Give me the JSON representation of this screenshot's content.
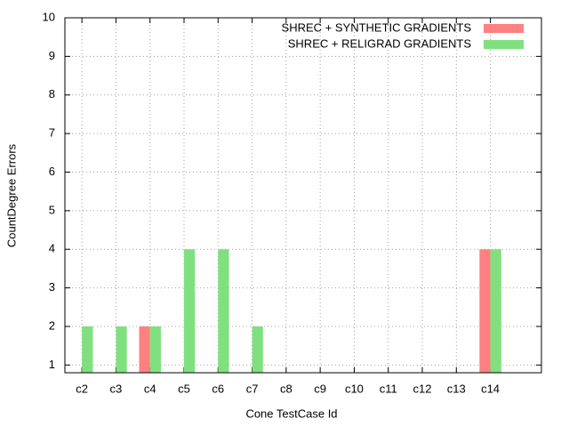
{
  "chart_data": {
    "type": "bar",
    "xlabel": "Cone TestCase Id",
    "ylabel": "CountDegree Errors",
    "categories": [
      "c2",
      "c3",
      "c4",
      "c5",
      "c6",
      "c7",
      "c8",
      "c9",
      "c10",
      "c11",
      "c12",
      "c13",
      "c14"
    ],
    "series": [
      {
        "name": "SHREC + SYNTHETIC GRADIENTS",
        "color": "#ff8080",
        "values": [
          null,
          null,
          2,
          null,
          null,
          null,
          null,
          null,
          null,
          null,
          null,
          null,
          4
        ]
      },
      {
        "name": "SHREC + RELIGRAD GRADIENTS",
        "color": "#80e080",
        "values": [
          2,
          2,
          2,
          4,
          4,
          2,
          null,
          null,
          null,
          null,
          null,
          null,
          4
        ]
      }
    ],
    "ylim": [
      0.8,
      10
    ],
    "yticks": [
      1,
      2,
      3,
      4,
      5,
      6,
      7,
      8,
      9,
      10
    ],
    "grid": true,
    "legend": "top-right"
  }
}
